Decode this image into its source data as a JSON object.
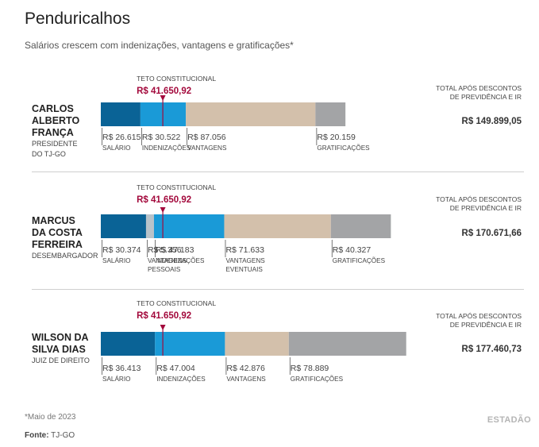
{
  "title": "Penduricalhos",
  "subtitle": "Salários crescem com indenizações, vantagens e gratificações*",
  "teto_label": "TETO CONSTITUCIONAL",
  "teto_value": "R$ 41.650,92",
  "total_label": "TOTAL APÓS DESCONTOS DE PREVIDÊNCIA E IR",
  "footnote": "*Maio de 2023",
  "source_label": "Fonte:",
  "source_value": "TJ-GO",
  "brand": "ESTADÃO",
  "colors": {
    "salario": "#0a6396",
    "vantagens_pessoais": "#b8c3ca",
    "indenizacoes": "#1a9ad7",
    "vantagens": "#d3c0ab",
    "vantagens_eventuais": "#d3c0ab",
    "gratificacoes": "#a3a4a6",
    "teto": "#a3093c"
  },
  "people": [
    {
      "name_lines": [
        "CARLOS",
        "ALBERTO",
        "FRANÇA"
      ],
      "role_lines": [
        "PRESIDENTE",
        "DO TJ-GO"
      ],
      "total": "R$ 149.899,05"
    },
    {
      "name_lines": [
        "MARCUS",
        "DA COSTA",
        "FERREIRA"
      ],
      "role_lines": [
        "DESEMBARGADOR"
      ],
      "total": "R$ 170.671,66"
    },
    {
      "name_lines": [
        "WILSON DA",
        "SILVA DIAS"
      ],
      "role_lines": [
        "JUIZ DE DIREITO"
      ],
      "total": "R$ 177.460,73"
    }
  ],
  "chart_data": [
    {
      "type": "bar",
      "orientation": "horizontal-stacked",
      "title": "CARLOS ALBERTO FRANÇA",
      "reference_line": {
        "label": "TETO CONSTITUCIONAL",
        "value": 41650.92
      },
      "segments": [
        {
          "key": "salario",
          "name": "SALÁRIO",
          "value": 26615,
          "label": "R$ 26.615"
        },
        {
          "key": "indenizacoes",
          "name": "INDENIZAÇÕES",
          "value": 30522,
          "label": "R$ 30.522"
        },
        {
          "key": "vantagens",
          "name": "VANTAGENS",
          "value": 87056,
          "label": "R$ 87.056"
        },
        {
          "key": "gratificacoes",
          "name": "GRATIFICAÇÕES",
          "value": 20159,
          "label": "R$ 20.159"
        }
      ]
    },
    {
      "type": "bar",
      "orientation": "horizontal-stacked",
      "title": "MARCUS DA COSTA FERREIRA",
      "reference_line": {
        "label": "TETO CONSTITUCIONAL",
        "value": 41650.92
      },
      "segments": [
        {
          "key": "salario",
          "name": "SALÁRIO",
          "value": 30374,
          "label": "R$ 30.374"
        },
        {
          "key": "vantagens_pessoais",
          "name": "VANTAGENS PESSOAIS",
          "value": 5356,
          "label": "R$ 5.356"
        },
        {
          "key": "indenizacoes",
          "name": "INDENIZAÇÕES",
          "value": 47183,
          "label": "R$ 47.183"
        },
        {
          "key": "vantagens_eventuais",
          "name": "VANTAGENS EVENTUAIS",
          "value": 71633,
          "label": "R$ 71.633"
        },
        {
          "key": "gratificacoes",
          "name": "GRATIFICAÇÕES",
          "value": 40327,
          "label": "R$ 40.327"
        }
      ]
    },
    {
      "type": "bar",
      "orientation": "horizontal-stacked",
      "title": "WILSON DA SILVA DIAS",
      "reference_line": {
        "label": "TETO CONSTITUCIONAL",
        "value": 41650.92
      },
      "segments": [
        {
          "key": "salario",
          "name": "SALÁRIO",
          "value": 36413,
          "label": "R$ 36.413"
        },
        {
          "key": "indenizacoes",
          "name": "INDENIZAÇÕES",
          "value": 47004,
          "label": "R$ 47.004"
        },
        {
          "key": "vantagens",
          "name": "VANTAGENS",
          "value": 42876,
          "label": "R$ 42.876"
        },
        {
          "key": "gratificacoes",
          "name": "GRATIFICAÇÕES",
          "value": 78889,
          "label": "R$ 78.889"
        }
      ]
    }
  ]
}
